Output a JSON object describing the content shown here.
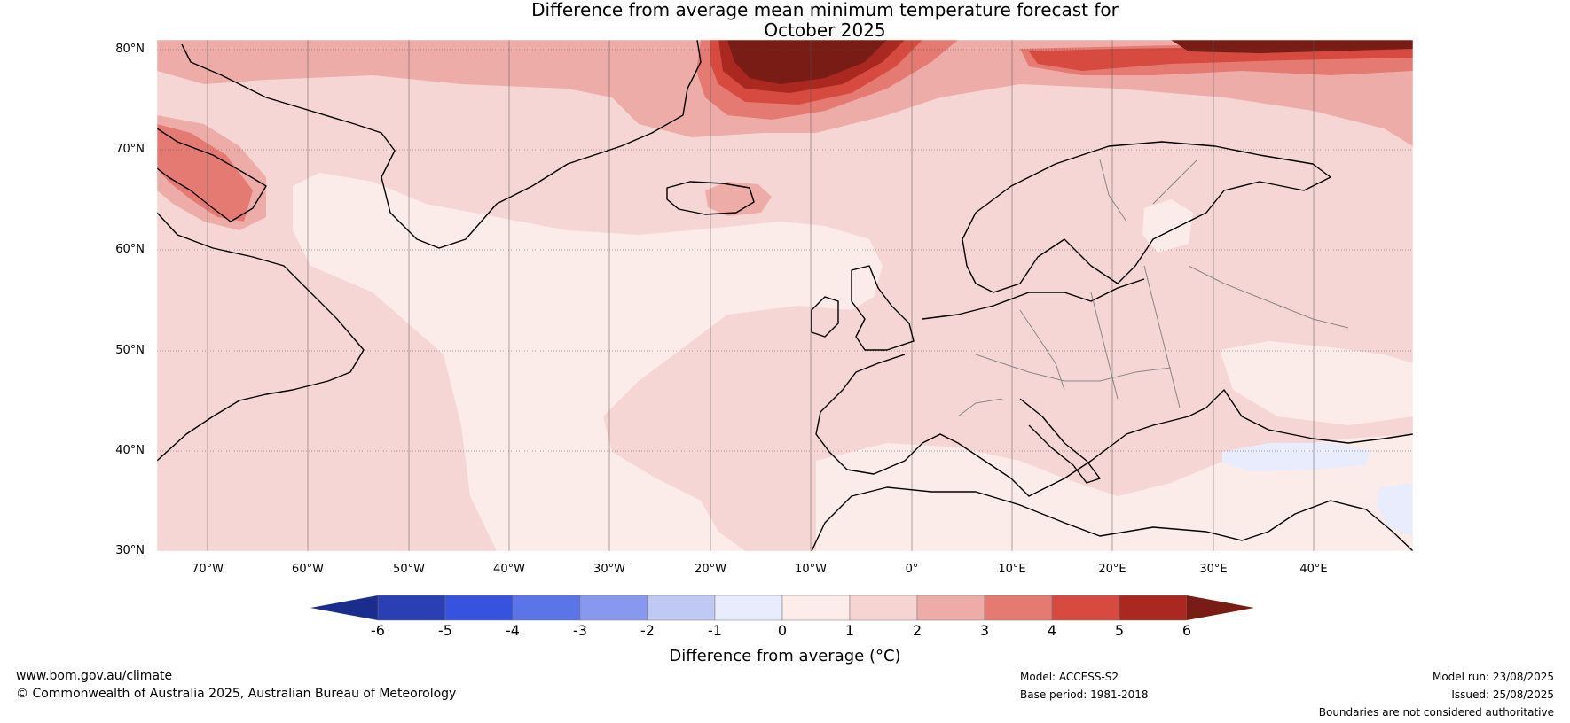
{
  "title": {
    "line1": "Difference from average mean minimum temperature forecast for",
    "line2": "October 2025"
  },
  "map": {
    "lat_labels": [
      "80°N",
      "70°N",
      "60°N",
      "50°N",
      "40°N",
      "30°N"
    ],
    "lon_labels": [
      "70°W",
      "60°W",
      "50°W",
      "40°W",
      "30°W",
      "20°W",
      "10°W",
      "0°",
      "10°E",
      "20°E",
      "30°E",
      "40°E"
    ],
    "background_color": "#f6d6d4"
  },
  "colorbar": {
    "title": "Difference from average (°C)",
    "ticks": [
      "-6",
      "-5",
      "-4",
      "-3",
      "-2",
      "-1",
      "0",
      "1",
      "2",
      "3",
      "4",
      "5",
      "6"
    ],
    "colors": [
      "#1a2c8c",
      "#2a3fb4",
      "#3553de",
      "#5b74e8",
      "#8898ee",
      "#c0c8f4",
      "#e8ecfc",
      "#fcecea",
      "#f6d4d2",
      "#eeaca8",
      "#e47a72",
      "#d64a40",
      "#aa2820",
      "#7a1c16"
    ]
  },
  "footer": {
    "website": "www.bom.gov.au/climate",
    "copyright": "© Commonwealth of Australia 2025, Australian Bureau of Meteorology",
    "model": "Model: ACCESS-S2",
    "base_period": "Base period: 1981-2018",
    "model_run": "Model run: 23/08/2025",
    "issued": "Issued: 25/08/2025",
    "disclaimer": "Boundaries are not considered authoritative"
  }
}
